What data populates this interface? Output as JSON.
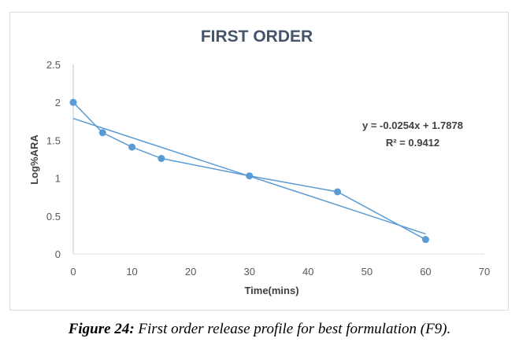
{
  "chart_data": {
    "type": "line",
    "title": "FIRST ORDER",
    "xlabel": "Time(mins)",
    "ylabel": "Log%ARA",
    "xlim": [
      0,
      70
    ],
    "ylim": [
      0,
      2.5
    ],
    "xticks": [
      0,
      10,
      20,
      30,
      40,
      50,
      60,
      70
    ],
    "yticks": [
      0,
      0.5,
      1,
      1.5,
      2,
      2.5
    ],
    "grid": false,
    "series": [
      {
        "x": [
          0,
          5,
          10,
          15,
          30,
          45,
          60
        ],
        "y": [
          2.0,
          1.6,
          1.41,
          1.26,
          1.03,
          0.82,
          0.19
        ],
        "color": "#5b9bd5",
        "markers": true
      }
    ],
    "trendline": {
      "slope": -0.0254,
      "intercept": 1.7878,
      "x_range": [
        0,
        60
      ],
      "equation": "y = -0.0254x + 1.7878",
      "r2": "R² = 0.9412"
    }
  },
  "caption": {
    "label": "Figure 24:",
    "text": " First order release profile for best formulation (F9)."
  }
}
